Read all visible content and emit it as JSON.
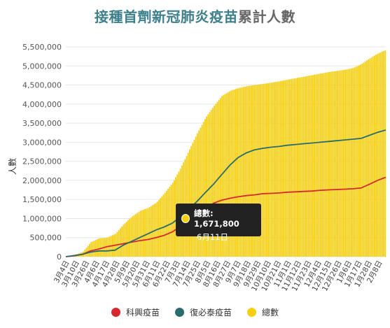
{
  "chart_data": {
    "type": "area",
    "title": {
      "highlight": "接種首劑新冠肺炎疫苗",
      "rest": "累計人數"
    },
    "ylabel": "人數",
    "xlabel": "",
    "ylim": [
      0,
      5500000
    ],
    "yticks": [
      0,
      500000,
      1000000,
      1500000,
      2000000,
      2500000,
      3000000,
      3500000,
      4000000,
      4500000,
      5000000,
      5500000
    ],
    "ytick_labels": [
      "0",
      "500,000",
      "1,000,000",
      "1,500,000",
      "2,000,000",
      "2,500,000",
      "3,000,000",
      "3,500,000",
      "4,000,000",
      "4,500,000",
      "5,000,000",
      "5,500,000"
    ],
    "x_tick_labels": [
      "3月4日",
      "3月10日",
      "3月26日",
      "4月6日",
      "4月17日",
      "4月28日",
      "5月9日",
      "5月20日",
      "5月31日",
      "6月11日",
      "6月22日",
      "7月3日",
      "7月14日",
      "7月25日",
      "8月5日",
      "8月16日",
      "8月27日",
      "9月7日",
      "9月18日",
      "9月29日",
      "10月10日",
      "10月21日",
      "11月1日",
      "11月12日",
      "11月23日",
      "12月4日",
      "12月15日",
      "12月26日",
      "1月6日",
      "1月17日",
      "1月28日",
      "2月8日"
    ],
    "grid": true,
    "legend_position": "bottom",
    "series": [
      {
        "name": "科興疫苗",
        "color": "#d6282e",
        "values": [
          0,
          20000,
          60000,
          150000,
          200000,
          260000,
          300000,
          340000,
          380000,
          420000,
          450000,
          500000,
          560000,
          650000,
          800000,
          950000,
          1100000,
          1250000,
          1400000,
          1480000,
          1530000,
          1570000,
          1600000,
          1620000,
          1650000,
          1660000,
          1670000,
          1690000,
          1700000,
          1710000,
          1720000,
          1740000,
          1750000,
          1760000,
          1770000,
          1780000,
          1800000,
          1900000,
          2000000,
          2080000
        ]
      },
      {
        "name": "復必泰疫苗",
        "color": "#2a6c6c",
        "values": [
          0,
          30000,
          60000,
          120000,
          150000,
          150000,
          170000,
          300000,
          400000,
          500000,
          600000,
          700000,
          780000,
          880000,
          1050000,
          1250000,
          1450000,
          1680000,
          1900000,
          2150000,
          2400000,
          2600000,
          2720000,
          2800000,
          2840000,
          2870000,
          2890000,
          2920000,
          2940000,
          2960000,
          2980000,
          3000000,
          3020000,
          3040000,
          3060000,
          3080000,
          3100000,
          3180000,
          3260000,
          3320000
        ]
      },
      {
        "name": "總數",
        "color": "#f5cf10",
        "values": [
          0,
          50000,
          120000,
          380000,
          480000,
          500000,
          600000,
          850000,
          1050000,
          1200000,
          1280000,
          1420000,
          1671800,
          1950000,
          2350000,
          2800000,
          3250000,
          3650000,
          3950000,
          4220000,
          4350000,
          4420000,
          4470000,
          4500000,
          4530000,
          4560000,
          4600000,
          4640000,
          4680000,
          4720000,
          4760000,
          4800000,
          4840000,
          4870000,
          4900000,
          4950000,
          5050000,
          5200000,
          5330000,
          5420000
        ]
      }
    ],
    "tooltip": {
      "label": "總數: 1,671,800",
      "date": "6月11日"
    }
  }
}
